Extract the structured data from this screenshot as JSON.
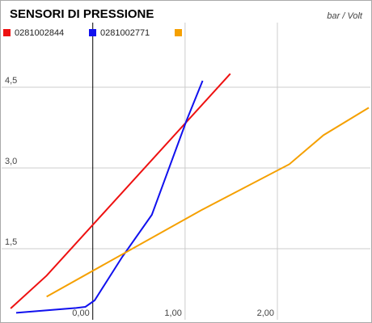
{
  "chart_data": {
    "type": "line",
    "title": "SENSORI DI PRESSIONE",
    "subtitle": "bar / Volt",
    "series": [
      {
        "name": "0281002844",
        "color": "#ee1111",
        "x": [
          -0.89,
          -0.5,
          1.49
        ],
        "values": [
          0.39,
          1.0,
          4.75
        ]
      },
      {
        "name": "0281002771",
        "color": "#1111ee",
        "x": [
          -0.83,
          -0.18,
          -0.08,
          0.02,
          0.32,
          0.64,
          1.02,
          1.19
        ],
        "values": [
          0.31,
          0.4,
          0.42,
          0.54,
          1.35,
          2.13,
          3.9,
          4.62
        ]
      },
      {
        "color": "#f5a000",
        "x": [
          -0.5,
          1.18,
          2.13,
          2.5,
          2.99
        ],
        "values": [
          0.61,
          2.22,
          3.07,
          3.61,
          4.12
        ]
      }
    ],
    "xlim": [
      -0.97,
      2.99
    ],
    "ylim": [
      0.18,
      5.4
    ],
    "xticks": [
      {
        "value": 0,
        "label": "0,00"
      },
      {
        "value": 1,
        "label": "1,00"
      },
      {
        "value": 2,
        "label": "2,00"
      }
    ],
    "yticks": [
      {
        "value": 1.5,
        "label": "1,5"
      },
      {
        "value": 3,
        "label": "3,0"
      },
      {
        "value": 4.5,
        "label": "4,5"
      }
    ],
    "grid": true
  }
}
